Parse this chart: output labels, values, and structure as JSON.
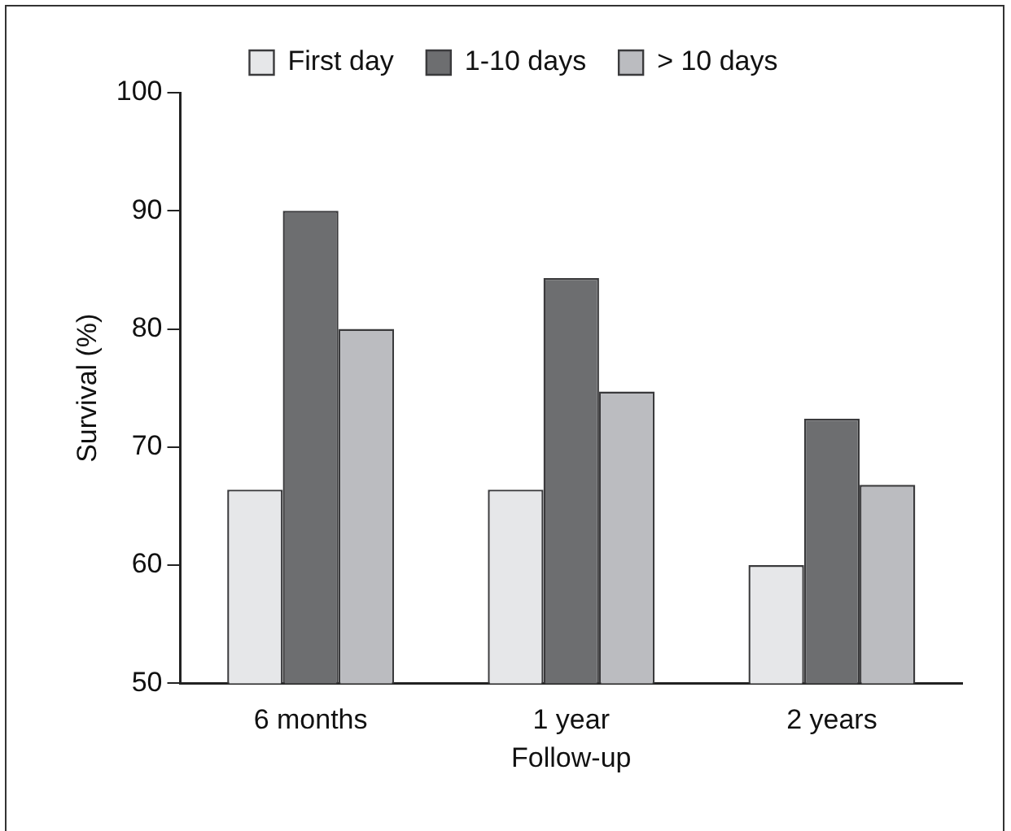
{
  "chart_data": {
    "type": "bar",
    "xlabel": "Follow-up",
    "ylabel": "Survival (%)",
    "categories": [
      "6 months",
      "1 year",
      "2 years"
    ],
    "series": [
      {
        "name": "First day",
        "color": "#e6e7e9",
        "values": [
          66.4,
          66.4,
          60
        ]
      },
      {
        "name": "1-10 days",
        "color": "#6d6e70",
        "values": [
          90,
          84.3,
          72.4
        ]
      },
      {
        "name": "> 10 days",
        "color": "#bbbcc0",
        "values": [
          80,
          74.7,
          66.8
        ]
      }
    ],
    "ylim": [
      50,
      100
    ],
    "yticks": [
      50,
      60,
      70,
      80,
      90,
      100
    ],
    "grid": false,
    "legend": "top"
  }
}
